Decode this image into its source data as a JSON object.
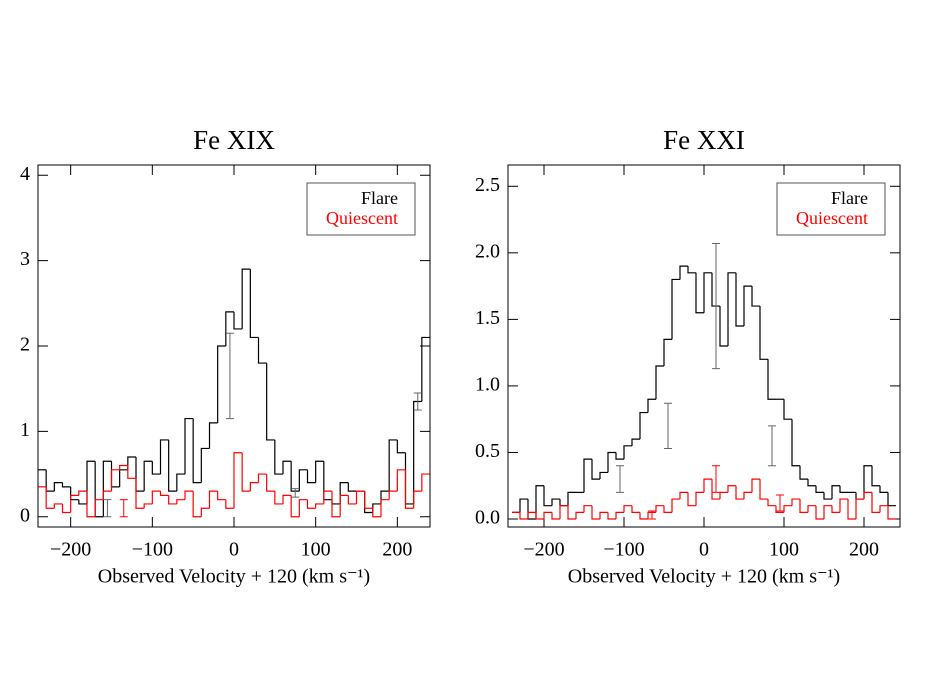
{
  "chart_data": [
    {
      "type": "step",
      "title": "Fe XIX",
      "xlabel": "Observed Velocity + 120 (km s⁻¹)",
      "xlim": [
        -240,
        240
      ],
      "ylim": [
        -0.12,
        4.12
      ],
      "xticks": [
        {
          "value": -200,
          "label": "−200"
        },
        {
          "value": -100,
          "label": "−100"
        },
        0,
        100,
        200
      ],
      "yticks": [
        0,
        1,
        2,
        3,
        4
      ],
      "legend": "upper right",
      "x": [
        -235,
        -225,
        -215,
        -205,
        -195,
        -185,
        -175,
        -165,
        -155,
        -145,
        -135,
        -125,
        -115,
        -105,
        -95,
        -85,
        -75,
        -65,
        -55,
        -45,
        -35,
        -25,
        -15,
        -5,
        5,
        15,
        25,
        35,
        45,
        55,
        65,
        75,
        85,
        95,
        105,
        115,
        125,
        135,
        145,
        155,
        165,
        175,
        185,
        195,
        205,
        215,
        225,
        235
      ],
      "series": [
        {
          "name": "Flare",
          "color": "#000000",
          "values": [
            0.55,
            0.3,
            0.4,
            0.35,
            0.2,
            0.15,
            0.65,
            0.0,
            0.65,
            0.35,
            0.55,
            0.7,
            0.3,
            0.65,
            0.5,
            0.9,
            0.3,
            0.5,
            1.15,
            0.4,
            0.8,
            1.1,
            2.0,
            2.4,
            2.2,
            2.9,
            2.1,
            1.8,
            0.9,
            0.5,
            0.65,
            0.3,
            0.55,
            0.4,
            0.65,
            0.2,
            0.15,
            0.4,
            0.3,
            0.3,
            0.05,
            0.15,
            0.3,
            0.9,
            0.75,
            0.15,
            1.35,
            2.1
          ],
          "errors": [
            {
              "x": -5,
              "value": 1.65,
              "error": 0.5
            },
            {
              "x": 75,
              "value": 0.28,
              "error": 0.05
            },
            {
              "x": 225,
              "value": 1.35,
              "error": 0.1
            },
            {
              "x": -155,
              "value": 0.1,
              "error": 0.1
            }
          ]
        },
        {
          "name": "Quiescent",
          "color": "#ff0000",
          "values": [
            0.35,
            0.1,
            0.15,
            0.05,
            0.25,
            0.3,
            0.0,
            0.2,
            0.3,
            0.55,
            0.6,
            0.45,
            0.1,
            0.15,
            0.3,
            0.25,
            0.15,
            0.2,
            0.3,
            0.0,
            0.1,
            0.3,
            0.2,
            0.1,
            0.75,
            0.3,
            0.4,
            0.5,
            0.3,
            0.15,
            0.25,
            0.0,
            0.2,
            0.1,
            0.15,
            0.3,
            0.0,
            0.25,
            0.15,
            0.3,
            0.1,
            0.0,
            0.2,
            0.3,
            0.55,
            0.1,
            0.3,
            0.5
          ],
          "errors": [
            {
              "x": -135,
              "value": 0.1,
              "error": 0.1
            }
          ]
        }
      ]
    },
    {
      "type": "step",
      "title": "Fe XXI",
      "xlabel": "Observed Velocity + 120 (km s⁻¹)",
      "xlim": [
        -245,
        245
      ],
      "ylim": [
        -0.06,
        2.66
      ],
      "xticks": [
        {
          "value": -200,
          "label": "−200"
        },
        {
          "value": -100,
          "label": "−100"
        },
        0,
        100,
        200
      ],
      "yticks": [
        {
          "value": 0,
          "label": "0.0"
        },
        0.5,
        {
          "value": 1,
          "label": "1.0"
        },
        1.5,
        {
          "value": 2,
          "label": "2.0"
        },
        2.5
      ],
      "legend": "upper right",
      "x": [
        -235,
        -225,
        -215,
        -205,
        -195,
        -185,
        -175,
        -165,
        -155,
        -145,
        -135,
        -125,
        -115,
        -105,
        -95,
        -85,
        -75,
        -65,
        -55,
        -45,
        -35,
        -25,
        -15,
        -5,
        5,
        15,
        25,
        35,
        45,
        55,
        65,
        75,
        85,
        95,
        105,
        115,
        125,
        135,
        145,
        155,
        165,
        175,
        185,
        195,
        205,
        215,
        225,
        235
      ],
      "series": [
        {
          "name": "Flare",
          "color": "#000000",
          "values": [
            0.05,
            0.15,
            0.0,
            0.25,
            0.1,
            0.15,
            0.1,
            0.2,
            0.2,
            0.45,
            0.3,
            0.35,
            0.5,
            0.45,
            0.55,
            0.6,
            0.8,
            0.9,
            1.15,
            1.35,
            1.8,
            1.9,
            1.85,
            1.55,
            1.85,
            1.6,
            1.3,
            1.85,
            1.45,
            1.75,
            1.6,
            1.2,
            0.9,
            0.9,
            0.75,
            0.4,
            0.3,
            0.25,
            0.2,
            0.15,
            0.25,
            0.2,
            0.2,
            0.15,
            0.4,
            0.25,
            0.2,
            0.1
          ],
          "errors": [
            {
              "x": 15,
              "value": 1.6,
              "error": 0.47
            },
            {
              "x": -45,
              "value": 0.7,
              "error": 0.17
            },
            {
              "x": 85,
              "value": 0.55,
              "error": 0.15
            },
            {
              "x": -105,
              "value": 0.3,
              "error": 0.1
            }
          ]
        },
        {
          "name": "Quiescent",
          "color": "#ff0000",
          "values": [
            0.05,
            0.0,
            0.05,
            0.0,
            0.05,
            0.0,
            0.1,
            0.0,
            0.05,
            0.1,
            0.0,
            0.05,
            0.0,
            0.05,
            0.1,
            0.05,
            0.0,
            0.05,
            0.1,
            0.05,
            0.15,
            0.2,
            0.1,
            0.2,
            0.3,
            0.15,
            0.2,
            0.25,
            0.15,
            0.2,
            0.3,
            0.15,
            0.1,
            0.05,
            0.1,
            0.15,
            0.05,
            0.1,
            0.0,
            0.1,
            0.05,
            0.15,
            0.0,
            0.15,
            0.2,
            0.05,
            0.1,
            0.0
          ],
          "errors": [
            {
              "x": 15,
              "value": 0.3,
              "error": 0.1
            },
            {
              "x": 95,
              "value": 0.12,
              "error": 0.06
            },
            {
              "x": -65,
              "value": 0.03,
              "error": 0.03
            }
          ]
        }
      ]
    }
  ]
}
